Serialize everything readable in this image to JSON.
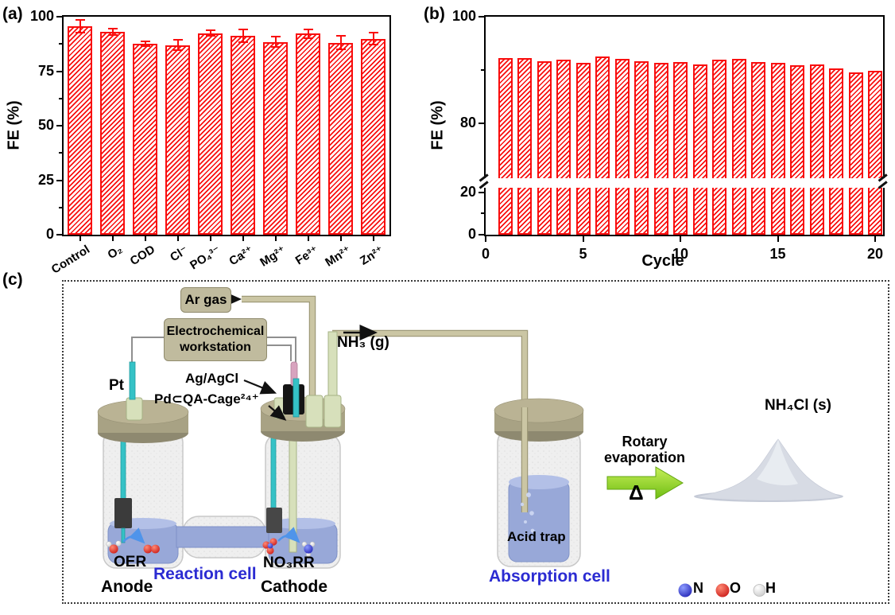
{
  "figure": {
    "panel_a_tag": "(a)",
    "panel_b_tag": "(b)",
    "panel_c_tag": "(c)",
    "bar_color": "#f90d0d",
    "background": "#ffffff"
  },
  "chart_data": [
    {
      "id": "panel-a",
      "type": "bar",
      "title": "",
      "xlabel": "",
      "ylabel": "FE (%)",
      "ylim": [
        0,
        100
      ],
      "yticks": [
        0,
        25,
        50,
        75,
        100
      ],
      "yticks_minor": [
        12.5,
        37.5,
        62.5,
        87.5
      ],
      "grid": false,
      "hatch": "diagonal",
      "bar_color": "#f90d0d",
      "categories": [
        "Control",
        "O₂",
        "COD",
        "Cl⁻",
        "PO₄³⁻",
        "Ca²⁺",
        "Mg²⁺",
        "Fe³⁺",
        "Mn²⁺",
        "Zn²⁺"
      ],
      "categories_plain": [
        "control",
        "o2",
        "cod",
        "cl",
        "po4",
        "ca2",
        "mg2",
        "fe3",
        "mn2",
        "zn2"
      ],
      "values": [
        95.5,
        93.0,
        87.6,
        86.9,
        92.4,
        91.3,
        88.4,
        92.2,
        88.0,
        89.9
      ],
      "errors": [
        2.9,
        1.4,
        1.0,
        2.4,
        1.3,
        2.9,
        2.4,
        1.9,
        3.1,
        2.7
      ]
    },
    {
      "id": "panel-b",
      "type": "bar",
      "title": "",
      "xlabel": "Cycle",
      "ylabel": "FE (%)",
      "ylim": [
        0,
        100
      ],
      "axis_break": [
        23,
        77
      ],
      "yticks": [
        0,
        20,
        80,
        100
      ],
      "yticks_minor": [
        10,
        90
      ],
      "xticks": [
        0,
        5,
        10,
        15,
        20
      ],
      "grid": false,
      "hatch": "diagonal",
      "bar_color": "#f90d0d",
      "x": [
        1,
        2,
        3,
        4,
        5,
        6,
        7,
        8,
        9,
        10,
        11,
        12,
        13,
        14,
        15,
        16,
        17,
        18,
        19,
        20
      ],
      "values": [
        92.2,
        92.3,
        91.6,
        92.0,
        91.3,
        92.5,
        92.1,
        91.7,
        91.4,
        91.5,
        91.0,
        91.9,
        92.1,
        91.5,
        91.4,
        90.9,
        91.0,
        90.3,
        89.6,
        89.9
      ]
    }
  ],
  "diagram": {
    "ar_gas": "Ar gas",
    "workstation_line1": "Electrochemical",
    "workstation_line2": "workstation",
    "nh3_gas": "NH₃ (g)",
    "pt": "Pt",
    "ag_agcl": "Ag/AgCl",
    "catalyst": "Pd⊂QA-Cage²⁴⁺",
    "oer": "OER",
    "no3rr": "NO₃RR",
    "reaction_cell": "Reaction cell",
    "anode": "Anode",
    "cathode": "Cathode",
    "acid_trap": "Acid trap",
    "absorption_cell": "Absorption cell",
    "rotary_line1": "Rotary",
    "rotary_line2": "evaporation",
    "delta": "Δ",
    "product": "NH₄Cl (s)",
    "accent_blue": "#2b2bd2",
    "arrow_green": "#6fbd13",
    "atom_legend": [
      {
        "label": "N",
        "color": "#1717ad"
      },
      {
        "label": "O",
        "color": "#c40d0d"
      },
      {
        "label": "H",
        "color": "#f2f2f2"
      }
    ]
  }
}
